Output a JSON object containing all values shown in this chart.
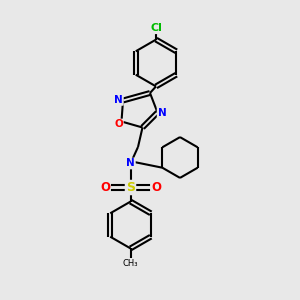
{
  "bg_color": "#e8e8e8",
  "bond_color": "#000000",
  "atom_colors": {
    "N": "#0000ff",
    "O": "#ff0000",
    "S": "#cccc00",
    "Cl": "#00bb00",
    "C": "#000000"
  },
  "line_width": 1.5,
  "fig_width": 3.0,
  "fig_height": 3.0,
  "dpi": 100
}
